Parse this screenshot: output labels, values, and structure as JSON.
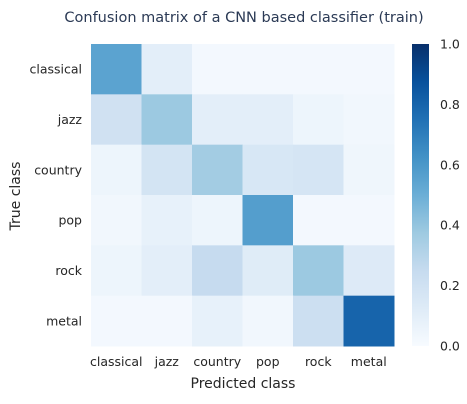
{
  "chart_data": {
    "type": "heatmap",
    "title": "Confusion matrix of a CNN based classifier (train)",
    "xlabel": "Predicted class",
    "ylabel": "True class",
    "x_categories": [
      "classical",
      "jazz",
      "country",
      "pop",
      "rock",
      "metal"
    ],
    "y_categories": [
      "classical",
      "jazz",
      "country",
      "pop",
      "rock",
      "metal"
    ],
    "values": [
      [
        0.55,
        0.1,
        0.02,
        0.02,
        0.02,
        0.02
      ],
      [
        0.2,
        0.38,
        0.1,
        0.1,
        0.05,
        0.03
      ],
      [
        0.05,
        0.18,
        0.36,
        0.16,
        0.17,
        0.04
      ],
      [
        0.03,
        0.08,
        0.05,
        0.57,
        0.02,
        0.02
      ],
      [
        0.05,
        0.1,
        0.25,
        0.12,
        0.38,
        0.13
      ],
      [
        0.02,
        0.02,
        0.08,
        0.03,
        0.22,
        0.8
      ]
    ],
    "colorbar": {
      "range": [
        0.0,
        1.0
      ],
      "ticks": [
        "0.0",
        "0.2",
        "0.4",
        "0.6",
        "0.8",
        "1.0"
      ],
      "colormap": "Blues"
    },
    "grid": false
  },
  "colors": {
    "cmap_low": "#f7fbff",
    "cmap_mid": "#6baed6",
    "cmap_high": "#08306b",
    "text": "#262626",
    "title_text": "#2b3a55"
  }
}
